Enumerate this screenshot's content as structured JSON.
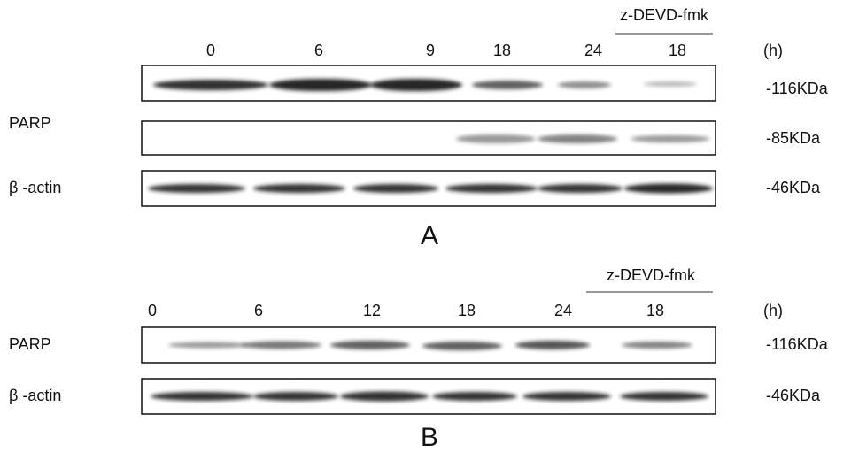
{
  "panels": [
    {
      "label": "A",
      "treatment": "z-DEVD-fmk",
      "unit": "(h)",
      "lanes": [
        "0",
        "6",
        "9",
        "18",
        "24",
        "18"
      ],
      "proteins": [
        "PARP",
        "β -actin"
      ],
      "sizes": [
        "-116KDa",
        "-85KDa",
        "-46KDa"
      ]
    },
    {
      "label": "B",
      "treatment": "z-DEVD-fmk",
      "unit": "(h)",
      "lanes": [
        "0",
        "6",
        "12",
        "18",
        "24",
        "18"
      ],
      "proteins": [
        "PARP",
        "β -actin"
      ],
      "sizes": [
        "-116KDa",
        "-46KDa"
      ]
    }
  ]
}
